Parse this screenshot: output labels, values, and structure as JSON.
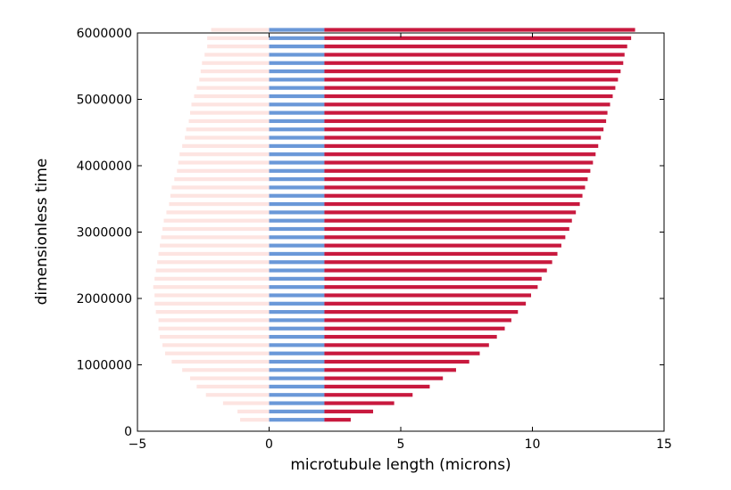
{
  "chart_data": {
    "type": "bar",
    "orientation": "horizontal",
    "xlabel": "microtubule length (microns)",
    "ylabel": "dimensionless time",
    "xlim": [
      -5,
      15
    ],
    "ylim": [
      0,
      6000000
    ],
    "xticks": [
      -5,
      0,
      5,
      10,
      15
    ],
    "yticks": [
      0,
      1000000,
      2000000,
      3000000,
      4000000,
      5000000,
      6000000
    ],
    "xtick_labels": [
      "−5",
      "0",
      "5",
      "10",
      "15"
    ],
    "ytick_labels": [
      "0",
      "1000000",
      "2000000",
      "3000000",
      "4000000",
      "5000000",
      "6000000"
    ],
    "grid": false,
    "colors": {
      "negative": "#fde4e1",
      "middle": "#6a98d8",
      "positive": "#c8193e"
    },
    "segment_boundaries": [
      0,
      2.1
    ],
    "times": [
      125000,
      250000,
      375000,
      500000,
      625000,
      750000,
      875000,
      1000000,
      1125000,
      1250000,
      1375000,
      1500000,
      1625000,
      1750000,
      1875000,
      2000000,
      2125000,
      2250000,
      2375000,
      2500000,
      2625000,
      2750000,
      2875000,
      3000000,
      3125000,
      3250000,
      3375000,
      3500000,
      3625000,
      3750000,
      3875000,
      4000000,
      4125000,
      4250000,
      4375000,
      4500000,
      4625000,
      4750000,
      4875000,
      5000000,
      5125000,
      5250000,
      5375000,
      5500000,
      5625000,
      5750000,
      5875000,
      6000000
    ],
    "left_ends": [
      -1.1,
      -1.2,
      -1.75,
      -2.4,
      -2.75,
      -3.0,
      -3.3,
      -3.7,
      -3.95,
      -4.05,
      -4.15,
      -4.2,
      -4.2,
      -4.3,
      -4.35,
      -4.35,
      -4.4,
      -4.35,
      -4.3,
      -4.25,
      -4.2,
      -4.15,
      -4.1,
      -4.05,
      -4.0,
      -3.9,
      -3.8,
      -3.75,
      -3.7,
      -3.6,
      -3.5,
      -3.45,
      -3.4,
      -3.3,
      -3.2,
      -3.15,
      -3.05,
      -3.0,
      -2.95,
      -2.85,
      -2.75,
      -2.65,
      -2.6,
      -2.55,
      -2.45,
      -2.35,
      -2.35,
      -2.2
    ],
    "right_ends": [
      3.1,
      3.95,
      4.75,
      5.45,
      6.1,
      6.6,
      7.1,
      7.6,
      8.0,
      8.35,
      8.65,
      8.95,
      9.2,
      9.45,
      9.75,
      9.95,
      10.2,
      10.35,
      10.55,
      10.75,
      10.95,
      11.1,
      11.25,
      11.4,
      11.5,
      11.65,
      11.8,
      11.9,
      12.0,
      12.1,
      12.2,
      12.3,
      12.4,
      12.5,
      12.6,
      12.7,
      12.8,
      12.85,
      12.95,
      13.05,
      13.15,
      13.25,
      13.35,
      13.45,
      13.5,
      13.6,
      13.75,
      13.9
    ]
  }
}
